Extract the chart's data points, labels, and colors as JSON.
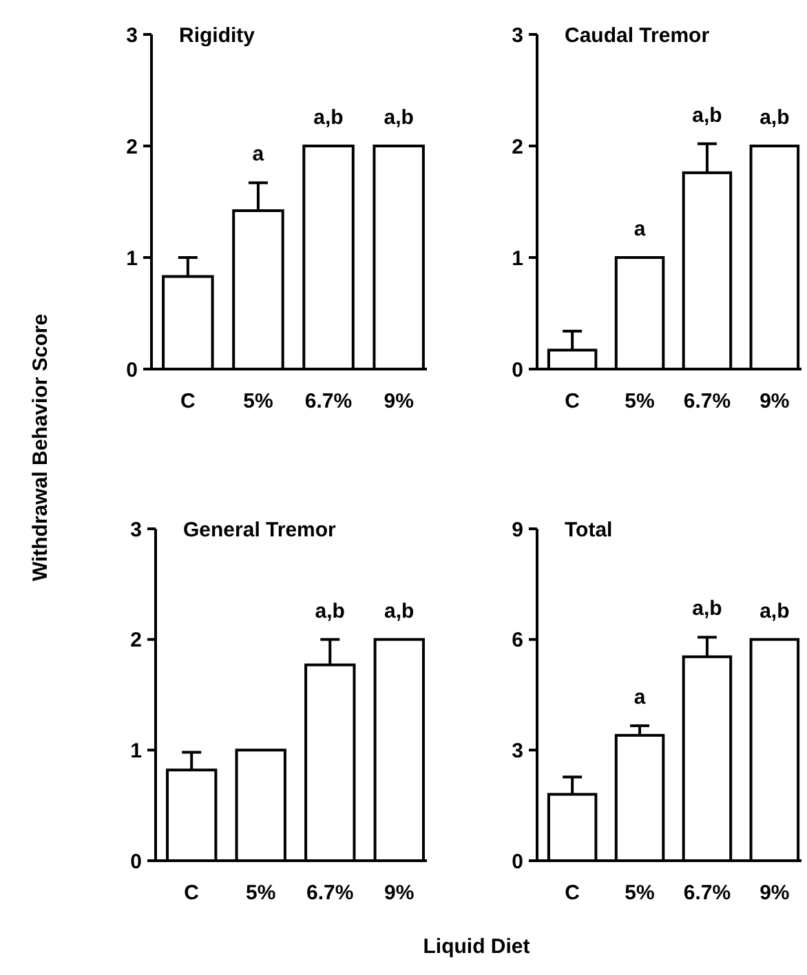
{
  "chart_data": [
    {
      "type": "bar",
      "title": "Rigidity",
      "ylabel": "Withdrawal Behavior Score",
      "categories": [
        "C",
        "5%",
        "6.7%",
        "9%"
      ],
      "values": [
        0.83,
        1.42,
        2,
        2
      ],
      "errors": [
        0.17,
        0.25,
        null,
        null
      ],
      "color": "#ffffff",
      "ylim": [
        0,
        3
      ],
      "yticks": [
        0,
        1,
        2,
        3
      ],
      "annotations": [
        {
          "text": "a",
          "x": "5%",
          "y": 1.67
        },
        {
          "text": "a,b",
          "x": "6.7%",
          "y": 2
        },
        {
          "text": "a,b",
          "x": "9%",
          "y": 2
        }
      ]
    },
    {
      "type": "bar",
      "title": "Caudal Tremor",
      "categories": [
        "C",
        "5%",
        "6.7%",
        "9%"
      ],
      "values": [
        0.17,
        1,
        1.76,
        2
      ],
      "errors": [
        0.17,
        null,
        0.26,
        null
      ],
      "color": "#ffffff",
      "ylim": [
        0,
        3
      ],
      "yticks": [
        0,
        1,
        2,
        3
      ],
      "annotations": [
        {
          "text": "a",
          "x": "5%",
          "y": 1
        },
        {
          "text": "a,b",
          "x": "6.7%",
          "y": 2.02
        },
        {
          "text": "a,b",
          "x": "9%",
          "y": 2
        }
      ]
    },
    {
      "type": "bar",
      "title": "General Tremor",
      "xlabel": "Liquid Diet",
      "categories": [
        "C",
        "5%",
        "6.7%",
        "9%"
      ],
      "values": [
        0.82,
        1,
        1.77,
        2
      ],
      "errors": [
        0.16,
        null,
        0.23,
        null
      ],
      "color": "#ffffff",
      "ylim": [
        0,
        3
      ],
      "yticks": [
        0,
        1,
        2,
        3
      ],
      "annotations": [
        {
          "text": "a,b",
          "x": "6.7%",
          "y": 2
        },
        {
          "text": "a,b",
          "x": "9%",
          "y": 2
        }
      ]
    },
    {
      "type": "bar",
      "title": "Total",
      "categories": [
        "C",
        "5%",
        "6.7%",
        "9%"
      ],
      "values": [
        1.8,
        3.4,
        5.53,
        6
      ],
      "errors": [
        0.47,
        0.26,
        0.53,
        null
      ],
      "color": "#ffffff",
      "ylim": [
        0,
        9
      ],
      "yticks": [
        0,
        3,
        6,
        9
      ],
      "annotations": [
        {
          "text": "a",
          "x": "5%",
          "y": 3.66
        },
        {
          "text": "a,b",
          "x": "6.7%",
          "y": 6.06
        },
        {
          "text": "a,b",
          "x": "9%",
          "y": 6
        }
      ]
    }
  ]
}
